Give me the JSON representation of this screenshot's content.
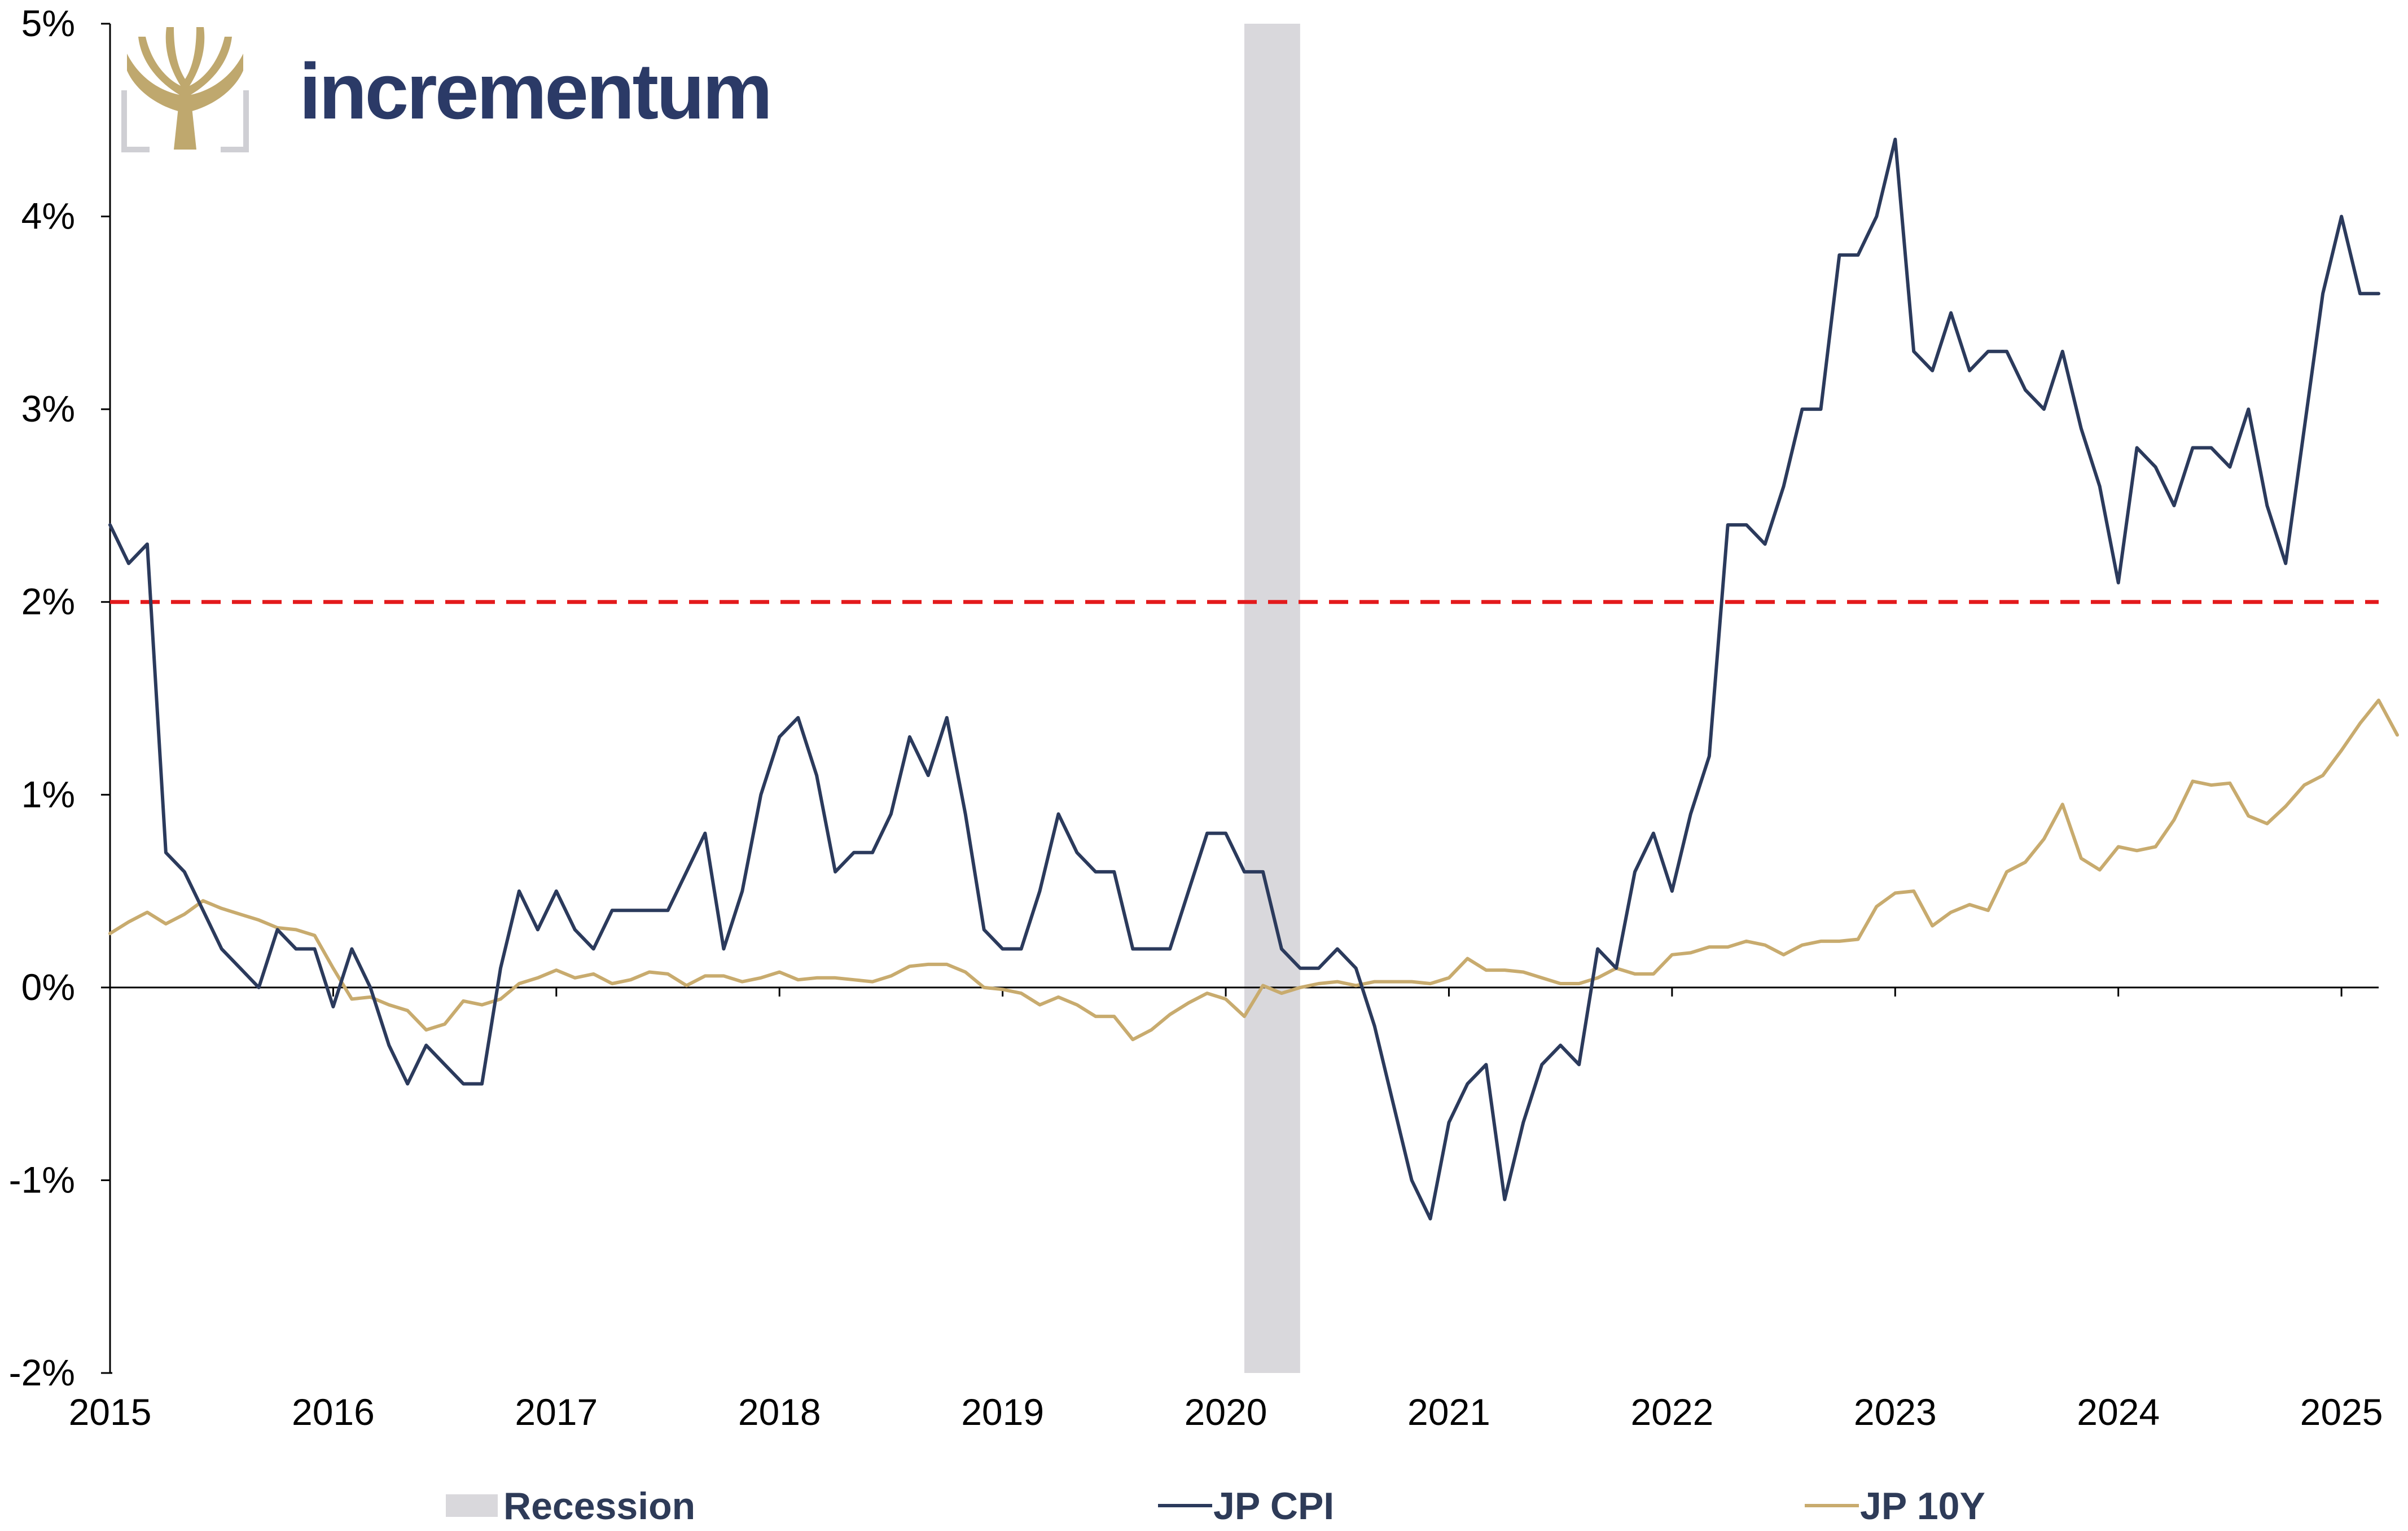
{
  "brand": {
    "name": "incrementum",
    "logo_icon": "tree-icon",
    "text_color": "#2b3a67",
    "logo_color": "#bfa86e",
    "logo_frame_color": "#cfcfd4"
  },
  "legend": {
    "recession_label": "Recession",
    "cpi_label": "JP CPI",
    "y10_label": "JP 10Y"
  },
  "chart_data": {
    "type": "line",
    "title": "",
    "xlabel": "",
    "ylabel": "",
    "x_ticks": [
      "2015",
      "2016",
      "2017",
      "2018",
      "2019",
      "2020",
      "2021",
      "2022",
      "2023",
      "2024",
      "2025"
    ],
    "y_ticks": [
      "5%",
      "4%",
      "3%",
      "2%",
      "1%",
      "0%",
      "-1%",
      "-2%"
    ],
    "ylim": [
      -2,
      5
    ],
    "xlim": [
      "2015-01",
      "2025-03"
    ],
    "grid": false,
    "legend_position": "bottom",
    "reference_line": {
      "value": 2,
      "style": "dashed",
      "color": "#e31a1c"
    },
    "recession": {
      "start": "2020-02",
      "end": "2020-05",
      "color": "#d9d8dc"
    },
    "series": [
      {
        "name": "JP CPI",
        "color": "#2b3a5c",
        "start": "2015-01",
        "frequency": "monthly",
        "values": [
          2.4,
          2.2,
          2.3,
          0.7,
          0.6,
          0.4,
          0.2,
          0.1,
          0.0,
          0.3,
          0.2,
          0.2,
          -0.1,
          0.2,
          0.0,
          -0.3,
          -0.5,
          -0.3,
          -0.4,
          -0.5,
          -0.5,
          0.1,
          0.5,
          0.3,
          0.5,
          0.3,
          0.2,
          0.4,
          0.4,
          0.4,
          0.4,
          0.6,
          0.8,
          0.2,
          0.5,
          1.0,
          1.3,
          1.4,
          1.1,
          0.6,
          0.7,
          0.7,
          0.9,
          1.3,
          1.1,
          1.4,
          0.9,
          0.3,
          0.2,
          0.2,
          0.5,
          0.9,
          0.7,
          0.6,
          0.6,
          0.2,
          0.2,
          0.2,
          0.5,
          0.8,
          0.8,
          0.6,
          0.6,
          0.2,
          0.1,
          0.1,
          0.2,
          0.1,
          -0.2,
          -0.6,
          -1.0,
          -1.2,
          -0.7,
          -0.5,
          -0.4,
          -1.1,
          -0.7,
          -0.4,
          -0.3,
          -0.4,
          0.2,
          0.1,
          0.6,
          0.8,
          0.5,
          0.9,
          1.2,
          2.4,
          2.4,
          2.3,
          2.6,
          3.0,
          3.0,
          3.8,
          3.8,
          4.0,
          4.4,
          3.3,
          3.2,
          3.5,
          3.2,
          3.3,
          3.3,
          3.1,
          3.0,
          3.3,
          2.9,
          2.6,
          2.1,
          2.8,
          2.7,
          2.5,
          2.8,
          2.8,
          2.7,
          3.0,
          2.5,
          2.2,
          2.9,
          3.6,
          4.0,
          3.6,
          3.6
        ]
      },
      {
        "name": "JP 10Y",
        "color": "#c8ab6e",
        "start": "2015-01",
        "frequency": "monthly",
        "values": [
          0.28,
          0.34,
          0.39,
          0.33,
          0.38,
          0.45,
          0.41,
          0.38,
          0.35,
          0.31,
          0.3,
          0.27,
          0.1,
          -0.06,
          -0.05,
          -0.09,
          -0.12,
          -0.22,
          -0.19,
          -0.07,
          -0.09,
          -0.06,
          0.02,
          0.05,
          0.09,
          0.05,
          0.07,
          0.02,
          0.04,
          0.08,
          0.07,
          0.01,
          0.06,
          0.06,
          0.03,
          0.05,
          0.08,
          0.04,
          0.05,
          0.05,
          0.04,
          0.03,
          0.06,
          0.11,
          0.12,
          0.12,
          0.08,
          0.0,
          -0.01,
          -0.03,
          -0.09,
          -0.05,
          -0.09,
          -0.15,
          -0.15,
          -0.27,
          -0.22,
          -0.14,
          -0.08,
          -0.03,
          -0.06,
          -0.15,
          0.01,
          -0.03,
          0.0,
          0.02,
          0.03,
          0.01,
          0.03,
          0.03,
          0.03,
          0.02,
          0.05,
          0.15,
          0.09,
          0.09,
          0.08,
          0.05,
          0.02,
          0.02,
          0.05,
          0.1,
          0.07,
          0.07,
          0.17,
          0.18,
          0.21,
          0.21,
          0.24,
          0.22,
          0.17,
          0.22,
          0.24,
          0.24,
          0.25,
          0.42,
          0.49,
          0.5,
          0.32,
          0.39,
          0.43,
          0.4,
          0.6,
          0.65,
          0.77,
          0.95,
          0.67,
          0.61,
          0.73,
          0.71,
          0.73,
          0.87,
          1.07,
          1.05,
          1.06,
          0.89,
          0.85,
          0.94,
          1.05,
          1.1,
          1.23,
          1.37,
          1.49,
          1.31
        ]
      }
    ]
  }
}
